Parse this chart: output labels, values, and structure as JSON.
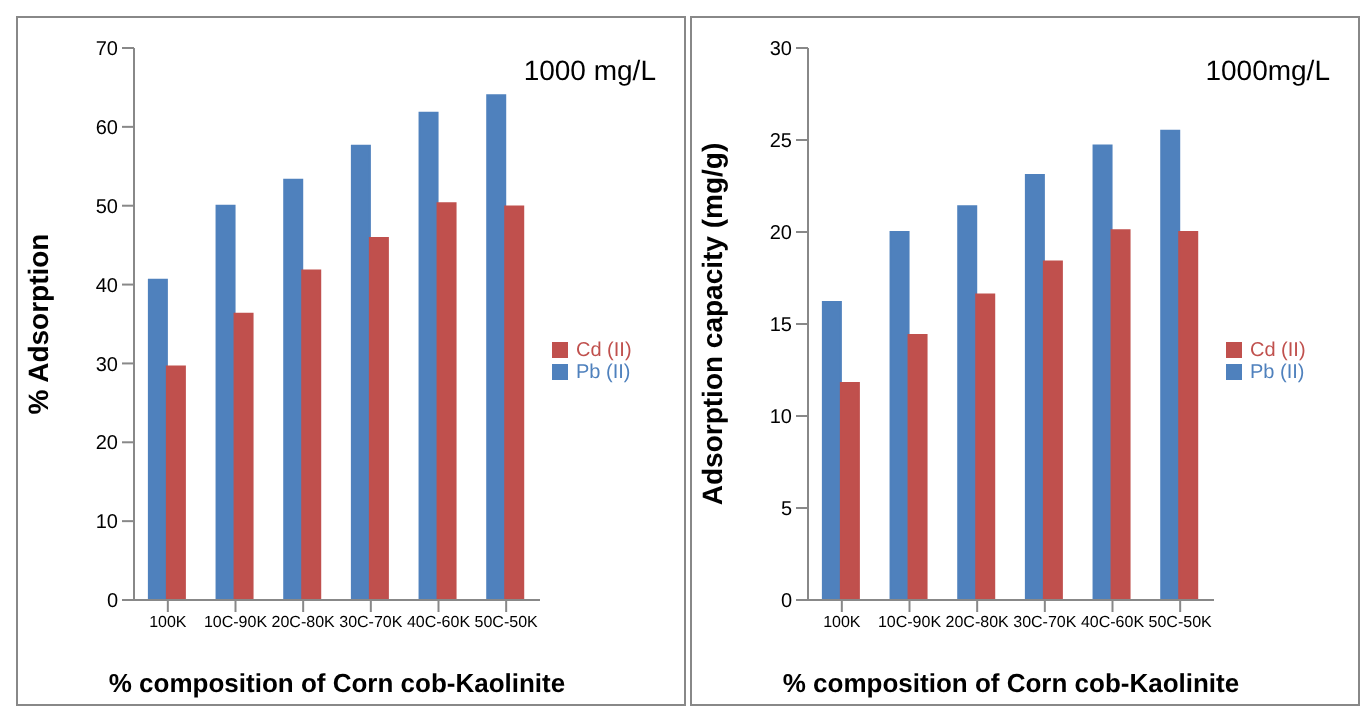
{
  "chart_data": [
    {
      "type": "bar",
      "categories": [
        "100K",
        "10C-90K",
        "20C-80K",
        "30C-70K",
        "40C-60K",
        "50C-50K"
      ],
      "xlabel": "% composition of Corn cob-Kaolinite",
      "ylabel": "% Adsorption",
      "annotations": [
        "1000 mg/L"
      ],
      "ylim": [
        0,
        70
      ],
      "yticks": [
        0,
        10,
        20,
        30,
        40,
        50,
        60,
        70
      ],
      "grid": false,
      "legend": "right",
      "series": [
        {
          "name": "Pb (II)",
          "color": "#4f81bd",
          "values": [
            40.6,
            50,
            53.3,
            57.6,
            61.8,
            64
          ]
        },
        {
          "name": "Cd (II)",
          "color": "#c0504d",
          "values": [
            29.6,
            36.3,
            41.8,
            45.9,
            50.3,
            49.9
          ]
        }
      ]
    },
    {
      "type": "bar",
      "categories": [
        "100K",
        "10C-90K",
        "20C-80K",
        "30C-70K",
        "40C-60K",
        "50C-50K"
      ],
      "xlabel": "% composition of Corn cob-Kaolinite",
      "ylabel": "Adsorption capacity (mg/g)",
      "annotations": [
        "1000mg/L"
      ],
      "ylim": [
        0,
        30
      ],
      "yticks": [
        0,
        5,
        10,
        15,
        20,
        25,
        30
      ],
      "grid": false,
      "legend": "right",
      "series": [
        {
          "name": "Pb (II)",
          "color": "#4f81bd",
          "values": [
            16.2,
            20,
            21.4,
            23.1,
            24.7,
            25.5
          ]
        },
        {
          "name": "Cd (II)",
          "color": "#c0504d",
          "values": [
            11.8,
            14.4,
            16.6,
            18.4,
            20.1,
            20.0
          ]
        }
      ]
    }
  ]
}
